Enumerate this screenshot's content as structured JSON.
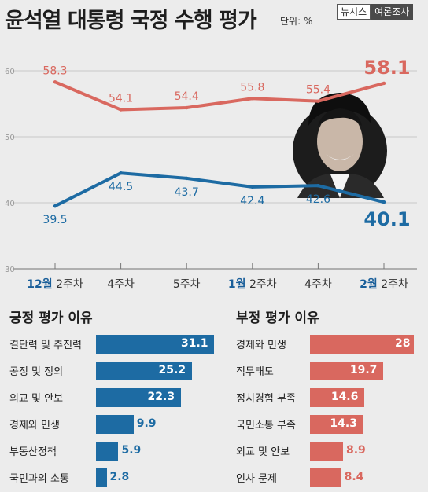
{
  "header": {
    "title": "윤석열 대통령 국정 수행 평가",
    "unit": "단위: %",
    "logo_left": "뉴시스",
    "logo_right": "여론조사"
  },
  "colors": {
    "negative": "#d9685f",
    "positive": "#1d6ba3",
    "accent_blue": "#1a5f9a",
    "grid": "#c8c8c8"
  },
  "chart_data": [
    {
      "type": "line",
      "title": "윤석열 대통령 국정 수행 평가",
      "unit": "%",
      "x": [
        "12월 2주차",
        "4주차",
        "5주차",
        "1월 2주차",
        "4주차",
        "2월 2주차"
      ],
      "x_ticks": [
        {
          "month": "12월",
          "week": "2주차"
        },
        {
          "month": "",
          "week": "4주차"
        },
        {
          "month": "",
          "week": "5주차"
        },
        {
          "month": "1월",
          "week": "2주차"
        },
        {
          "month": "",
          "week": "4주차"
        },
        {
          "month": "2월",
          "week": "2주차"
        }
      ],
      "y_ticks": [
        30,
        40,
        50,
        60
      ],
      "ylim": [
        30,
        63
      ],
      "grid": true,
      "series": [
        {
          "key": "negative",
          "values": [
            58.3,
            54.1,
            54.4,
            55.8,
            55.4,
            58.1
          ],
          "labels": [
            "58.3",
            "54.1",
            "54.4",
            "55.8",
            "55.4",
            "58.1"
          ]
        },
        {
          "key": "positive",
          "values": [
            39.5,
            44.5,
            43.7,
            42.4,
            42.6,
            40.1
          ],
          "labels": [
            "39.5",
            "44.5",
            "43.7",
            "42.4",
            "42.6",
            "40.1"
          ]
        }
      ]
    },
    {
      "type": "bar",
      "orientation": "horizontal",
      "title": "긍정 평가 이유",
      "categories": [
        "결단력 및 추진력",
        "공정 및 정의",
        "외교 및 안보",
        "경제와 민생",
        "부동산정책",
        "국민과의 소통"
      ],
      "values": [
        31.1,
        25.2,
        22.3,
        9.9,
        5.9,
        2.8
      ],
      "labels": [
        "31.1",
        "25.2",
        "22.3",
        "9.9",
        "5.9",
        "2.8"
      ],
      "color_key": "positive"
    },
    {
      "type": "bar",
      "orientation": "horizontal",
      "title": "부정 평가 이유",
      "categories": [
        "경제와 민생",
        "직무태도",
        "정치경험 부족",
        "국민소통 부족",
        "외교 및 안보",
        "인사 문제"
      ],
      "values": [
        28,
        19.7,
        14.6,
        14.3,
        8.9,
        8.4
      ],
      "labels": [
        "28",
        "19.7",
        "14.6",
        "14.3",
        "8.9",
        "8.4"
      ],
      "color_key": "negative"
    }
  ]
}
